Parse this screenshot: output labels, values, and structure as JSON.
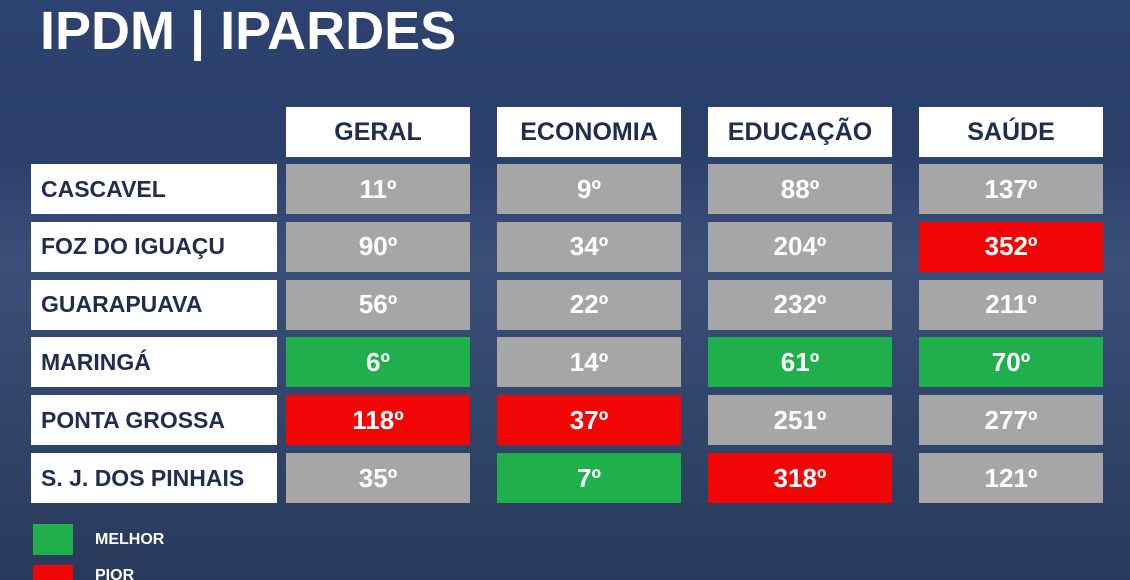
{
  "header": {
    "title": "IPDM | IPARDES"
  },
  "table": {
    "columns": [
      "GERAL",
      "ECONOMIA",
      "EDUCAÇÃO",
      "SAÚDE"
    ],
    "rows": [
      {
        "label": "CASCAVEL",
        "cells": [
          {
            "text": "11º",
            "color": "#a6a6a6"
          },
          {
            "text": "9º",
            "color": "#a6a6a6"
          },
          {
            "text": "88º",
            "color": "#a6a6a6"
          },
          {
            "text": "137º",
            "color": "#a6a6a6"
          }
        ]
      },
      {
        "label": "FOZ DO IGUAÇU",
        "cells": [
          {
            "text": "90º",
            "color": "#a6a6a6"
          },
          {
            "text": "34º",
            "color": "#a6a6a6"
          },
          {
            "text": "204º",
            "color": "#a6a6a6"
          },
          {
            "text": "352º",
            "color": "#f20505"
          }
        ]
      },
      {
        "label": "GUARAPUAVA",
        "cells": [
          {
            "text": "56º",
            "color": "#a6a6a6"
          },
          {
            "text": "22º",
            "color": "#a6a6a6"
          },
          {
            "text": "232º",
            "color": "#a6a6a6"
          },
          {
            "text": "211º",
            "color": "#a6a6a6"
          }
        ]
      },
      {
        "label": "MARINGÁ",
        "cells": [
          {
            "text": "6º",
            "color": "#1fb04c"
          },
          {
            "text": "14º",
            "color": "#a6a6a6"
          },
          {
            "text": "61º",
            "color": "#1fb04c"
          },
          {
            "text": "70º",
            "color": "#1fb04c"
          }
        ]
      },
      {
        "label": "PONTA GROSSA",
        "cells": [
          {
            "text": "118º",
            "color": "#f20505"
          },
          {
            "text": "37º",
            "color": "#f20505"
          },
          {
            "text": "251º",
            "color": "#a6a6a6"
          },
          {
            "text": "277º",
            "color": "#a6a6a6"
          }
        ]
      },
      {
        "label": "S. J. DOS PINHAIS",
        "cells": [
          {
            "text": "35º",
            "color": "#a6a6a6"
          },
          {
            "text": "7º",
            "color": "#1fb04c"
          },
          {
            "text": "318º",
            "color": "#f20505"
          },
          {
            "text": "121º",
            "color": "#a6a6a6"
          }
        ]
      }
    ]
  },
  "legend": [
    {
      "label": "MELHOR",
      "color": "#1fb04c"
    },
    {
      "label": "PIOR",
      "color": "#f20505"
    }
  ]
}
